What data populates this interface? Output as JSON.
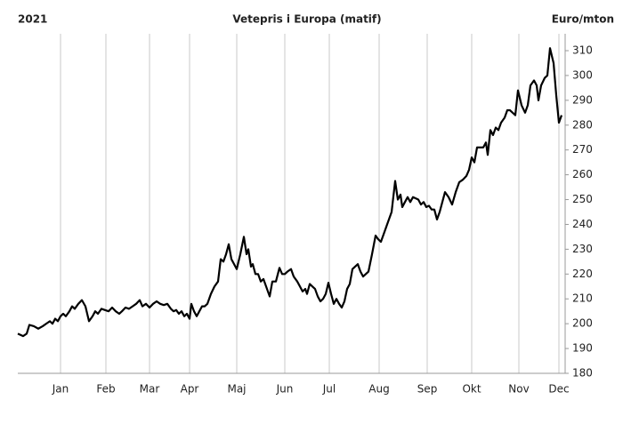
{
  "chart_data": {
    "type": "line",
    "title": "Vetepris i Europa (matif)",
    "subtitle": "2021",
    "y_label": "Euro/mton",
    "xlim": [
      0,
      615
    ],
    "xticks": [
      {
        "value": 48,
        "label": "Jan"
      },
      {
        "value": 99,
        "label": "Feb"
      },
      {
        "value": 148,
        "label": "Mar"
      },
      {
        "value": 193,
        "label": "Apr"
      },
      {
        "value": 246,
        "label": "Maj"
      },
      {
        "value": 300,
        "label": "Jun"
      },
      {
        "value": 350,
        "label": "Jul"
      },
      {
        "value": 406,
        "label": "Aug"
      },
      {
        "value": 460,
        "label": "Sep"
      },
      {
        "value": 510,
        "label": "Okt"
      },
      {
        "value": 563,
        "label": "Nov"
      },
      {
        "value": 608,
        "label": "Dec"
      }
    ],
    "ylim": [
      180,
      310
    ],
    "yticks": [
      180,
      190,
      200,
      210,
      220,
      230,
      240,
      250,
      260,
      270,
      280,
      290,
      300,
      310
    ],
    "grid": "x",
    "color": "#000000",
    "x": [
      0,
      6,
      10,
      13,
      18,
      23,
      28,
      32,
      36,
      39,
      42,
      45,
      48,
      51,
      54,
      58,
      61,
      64,
      68,
      72,
      76,
      80,
      84,
      87,
      90,
      94,
      98,
      102,
      106,
      110,
      114,
      117,
      121,
      125,
      129,
      133,
      137,
      140,
      144,
      148,
      152,
      156,
      160,
      164,
      168,
      172,
      175,
      178,
      181,
      184,
      187,
      190,
      193,
      195,
      198,
      201,
      204,
      207,
      210,
      213,
      217,
      221,
      225,
      228,
      231,
      234,
      237,
      240,
      243,
      246,
      250,
      254,
      257,
      259,
      262,
      264,
      267,
      270,
      273,
      276,
      280,
      283,
      286,
      290,
      294,
      297,
      300,
      303,
      307,
      310,
      314,
      317,
      320,
      323,
      325,
      328,
      331,
      334,
      337,
      340,
      343,
      346,
      349,
      352,
      355,
      358,
      361,
      364,
      367,
      370,
      373,
      376,
      379,
      382,
      385,
      388,
      391,
      394,
      398,
      402,
      405,
      408,
      412,
      416,
      420,
      424,
      427,
      430,
      432,
      435,
      438,
      441,
      444,
      447,
      450,
      453,
      456,
      459,
      462,
      465,
      468,
      471,
      474,
      477,
      480,
      484,
      488,
      492,
      496,
      500,
      504,
      507,
      510,
      513,
      516,
      520,
      523,
      526,
      528,
      531,
      534,
      537,
      540,
      543,
      547,
      550,
      553,
      556,
      559,
      562,
      566,
      570,
      573,
      576,
      580,
      583,
      585,
      588,
      592,
      595,
      598,
      602,
      605,
      608,
      611
    ],
    "values": [
      196,
      195,
      196,
      199.5,
      199,
      198,
      199,
      200,
      201,
      200,
      202,
      201,
      203,
      204,
      203,
      205,
      207,
      206,
      208,
      209.5,
      207,
      201,
      203,
      205,
      204,
      206,
      205.5,
      205,
      206.5,
      205,
      204,
      205,
      206.5,
      206,
      207,
      208,
      209.5,
      207,
      208,
      206.5,
      208,
      209,
      208,
      207.5,
      208,
      206,
      205,
      205.5,
      204,
      205,
      203,
      204,
      202,
      208,
      205,
      203,
      205,
      207,
      207,
      208,
      212,
      215,
      217,
      226,
      225,
      228,
      232,
      226,
      224,
      222,
      228,
      235,
      228,
      230,
      223,
      224,
      220,
      220,
      217,
      218,
      214,
      211,
      217,
      217,
      222.5,
      220,
      220,
      221,
      222,
      219,
      217,
      215,
      213,
      214,
      212,
      216,
      215,
      214,
      211,
      209,
      210,
      212,
      216.5,
      212,
      208,
      210,
      208,
      206.5,
      209,
      214,
      216,
      222,
      223,
      224,
      221,
      219,
      220,
      221,
      228,
      235.5,
      234,
      233,
      237,
      241,
      245,
      257.5,
      250,
      252,
      247,
      249,
      251,
      249,
      251,
      250.5,
      250,
      248,
      249,
      247,
      247.5,
      246,
      246,
      242,
      245,
      249,
      253,
      251,
      248,
      253,
      257,
      258,
      259.5,
      262,
      267,
      265,
      271,
      271,
      271,
      273,
      268,
      278,
      276,
      279,
      278,
      281,
      283,
      286,
      286,
      285,
      284,
      294,
      288,
      285,
      288,
      296,
      298,
      296,
      290,
      296,
      299,
      300,
      311,
      305,
      292,
      281,
      284
    ]
  }
}
